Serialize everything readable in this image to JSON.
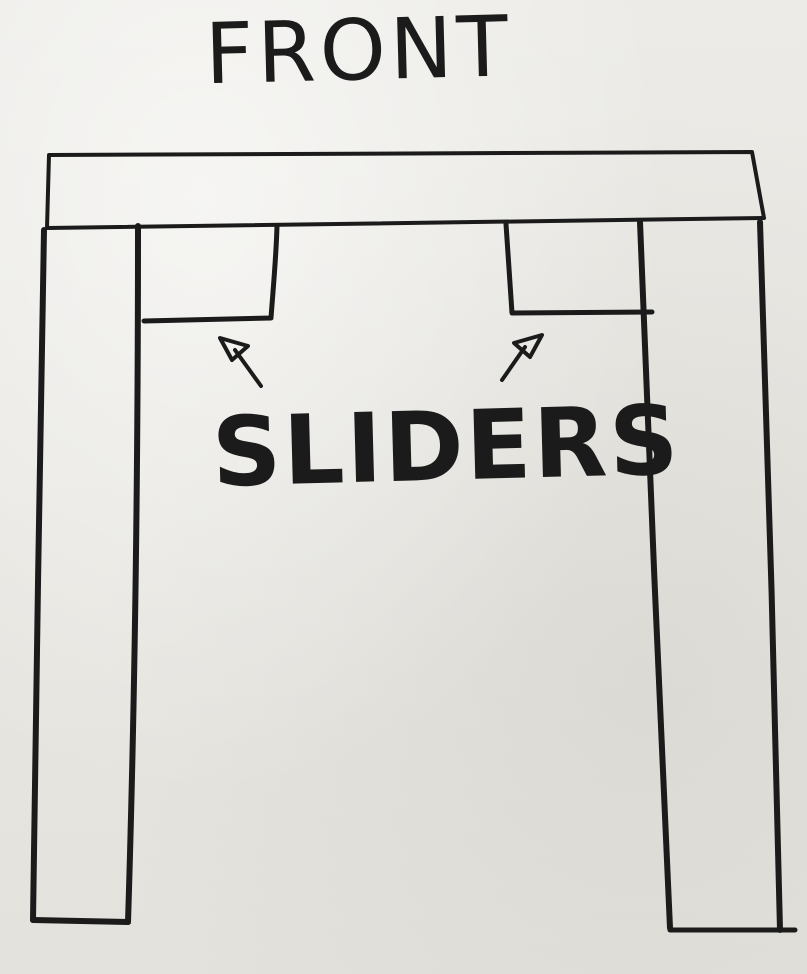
{
  "labels": {
    "top": "FRONT",
    "middle": "SLIDERS"
  },
  "icons": {
    "left_arrow": "arrow-up-left-icon",
    "right_arrow": "arrow-up-right-icon"
  },
  "colors": {
    "marker": "#1b1b1b",
    "whiteboard": "#e9e7e2"
  }
}
